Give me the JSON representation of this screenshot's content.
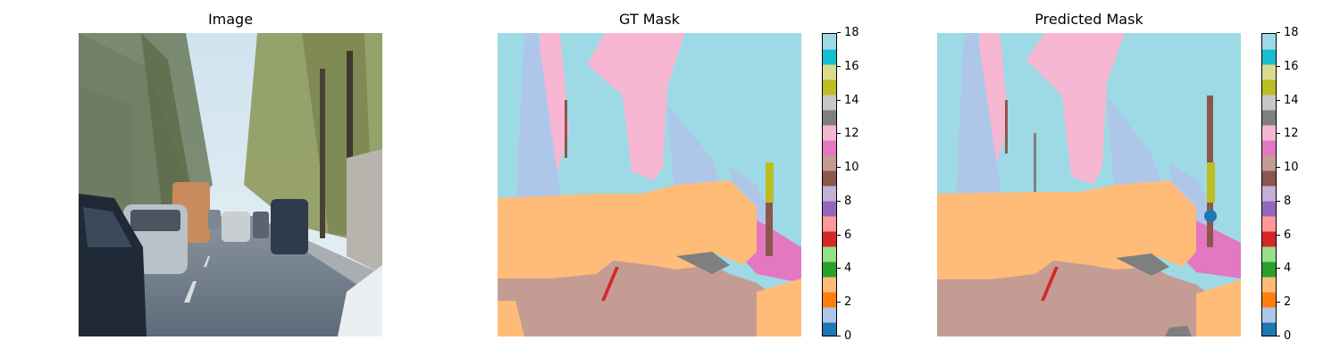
{
  "titles": {
    "image": "Image",
    "gt": "GT Mask",
    "pred": "Predicted Mask"
  },
  "colorbar": {
    "min": 0,
    "max": 18,
    "tick_labels": [
      "0",
      "2",
      "4",
      "6",
      "8",
      "10",
      "12",
      "14",
      "16",
      "18"
    ],
    "colors": [
      "#1f77b4",
      "#aec7e8",
      "#ff7f0e",
      "#ffbb78",
      "#2ca02c",
      "#98df8a",
      "#d62728",
      "#ff9896",
      "#9467bd",
      "#c5b0d5",
      "#8c564b",
      "#c49c94",
      "#e377c2",
      "#f7b6d2",
      "#7f7f7f",
      "#c7c7c7",
      "#bcbd22",
      "#dbdb8d",
      "#17becf",
      "#9edae5"
    ]
  }
}
